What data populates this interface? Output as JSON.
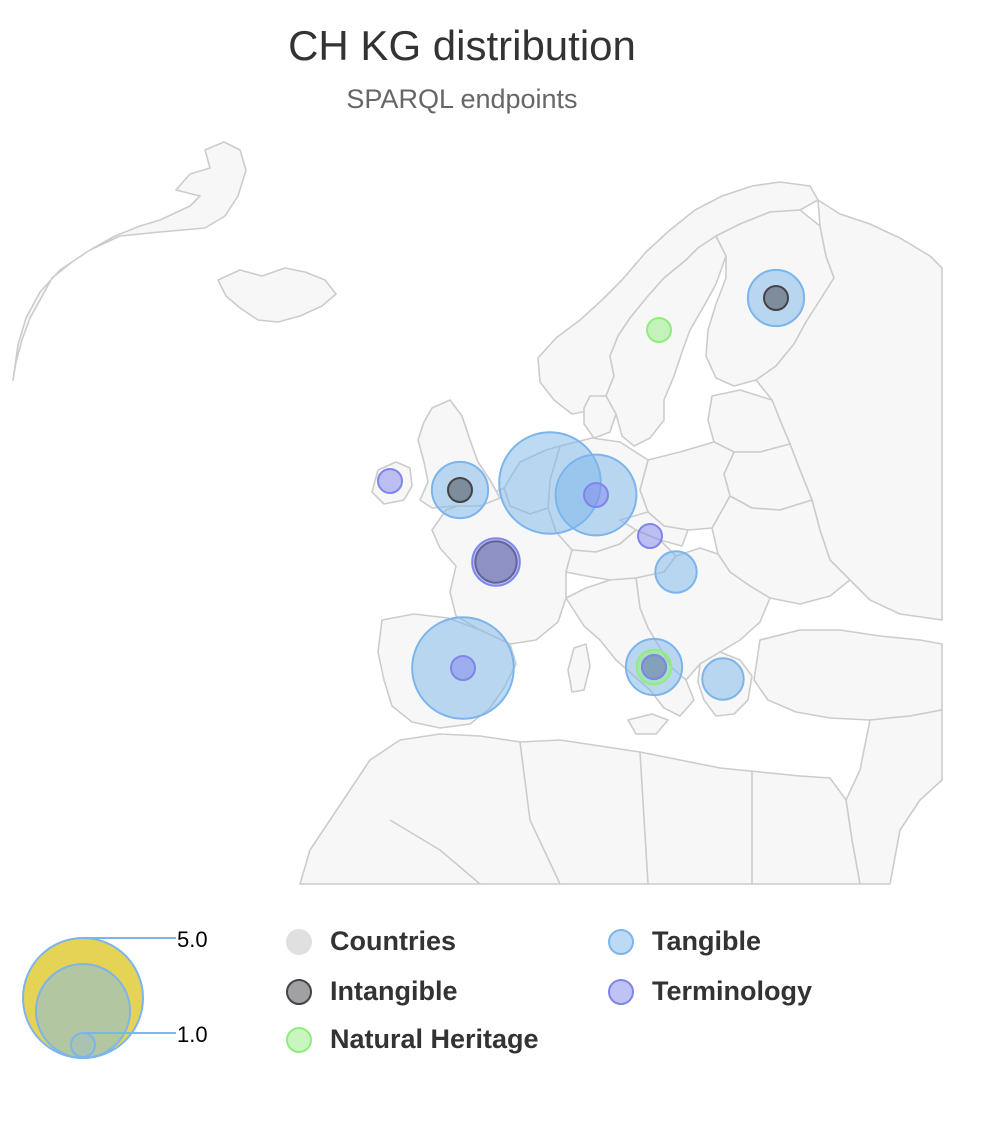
{
  "title": "CH KG distribution",
  "subtitle": "SPARQL endpoints",
  "colors": {
    "country_fill": "#f7f7f7",
    "country_stroke": "#cccccc",
    "tangible": "#7cb5ec",
    "intangible": "#434348",
    "natural": "#90ed7d",
    "terminology": "#8085e9",
    "countries_legend": "#e0e0e0",
    "size_legend_fill": "#e4d354"
  },
  "legend": {
    "countries": "Countries",
    "tangible": "Tangible",
    "intangible": "Intangible",
    "terminology": "Terminology",
    "natural": "Natural Heritage"
  },
  "size_legend": {
    "max_label": "5.0",
    "min_label": "1.0"
  },
  "chart_data": {
    "type": "bubble-map",
    "title": "CH KG distribution",
    "subtitle": "SPARQL endpoints",
    "region": "Europe",
    "size_range": [
      1.0,
      5.0
    ],
    "series": [
      {
        "name": "Tangible",
        "color": "#7cb5ec",
        "points": [
          {
            "location": "Finland",
            "value": 2
          },
          {
            "location": "United Kingdom",
            "value": 2
          },
          {
            "location": "Netherlands / Belgium",
            "value": 4
          },
          {
            "location": "Germany",
            "value": 3
          },
          {
            "location": "Hungary / Austria",
            "value": 1.5
          },
          {
            "location": "Spain",
            "value": 4
          },
          {
            "location": "Italy",
            "value": 2
          },
          {
            "location": "Greece",
            "value": 1.5
          }
        ]
      },
      {
        "name": "Intangible",
        "color": "#434348",
        "points": [
          {
            "location": "Finland",
            "value": 1
          },
          {
            "location": "United Kingdom",
            "value": 1
          },
          {
            "location": "France",
            "value": 1.5
          },
          {
            "location": "Italy",
            "value": 1
          }
        ]
      },
      {
        "name": "Natural Heritage",
        "color": "#90ed7d",
        "points": [
          {
            "location": "Sweden",
            "value": 1
          },
          {
            "location": "Italy",
            "value": 1.3
          }
        ]
      },
      {
        "name": "Terminology",
        "color": "#8085e9",
        "points": [
          {
            "location": "Ireland",
            "value": 1
          },
          {
            "location": "France",
            "value": 1.7
          },
          {
            "location": "Germany",
            "value": 1
          },
          {
            "location": "Czechia",
            "value": 1
          },
          {
            "location": "Spain",
            "value": 1
          },
          {
            "location": "Italy",
            "value": 1
          }
        ]
      }
    ]
  }
}
